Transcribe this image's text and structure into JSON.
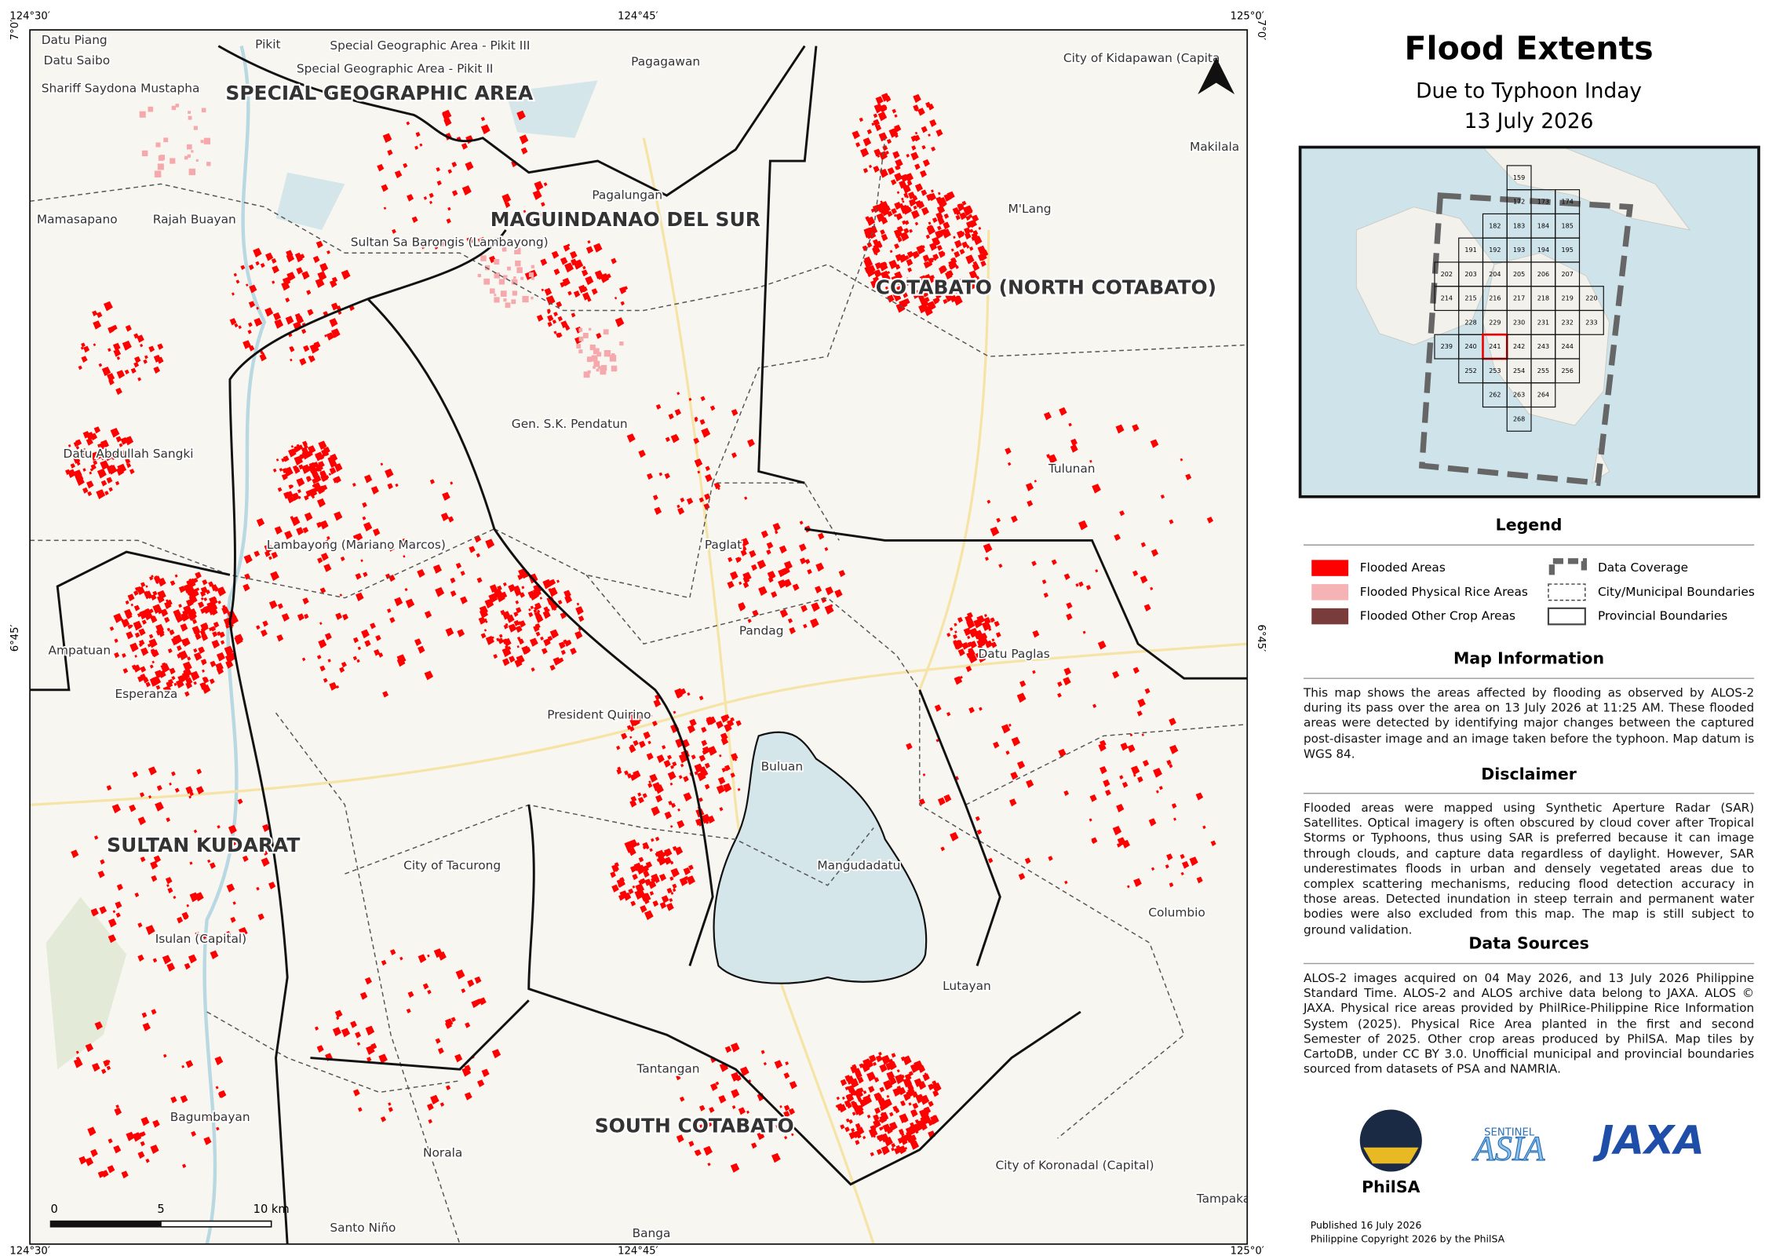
{
  "header": {
    "title": "Flood Extents",
    "subtitle": "Due to Typhoon Inday",
    "date": "13 July 2026"
  },
  "map": {
    "coordinates": {
      "top": [
        "124°30′",
        "124°45′",
        "125°0′"
      ],
      "bottom": [
        "124°30′",
        "124°45′",
        "125°0′"
      ],
      "left": [
        "7°0′",
        "6°45′"
      ],
      "right": [
        "7°0′",
        "6°45′"
      ]
    },
    "provinces": [
      "SPECIAL GEOGRAPHIC AREA",
      "MAGUINDANAO DEL SUR",
      "COTABATO (NORTH COTABATO)",
      "SULTAN KUDARAT",
      "SOUTH COTABATO"
    ],
    "places": [
      "Datu Piang",
      "Datu Saibo",
      "Pikit",
      "Special Geographic Area - Pikit III",
      "Special Geographic Area - Pikit II",
      "Shariff Saydona Mustapha",
      "Pagagawan",
      "City of Kidapawan (Capita",
      "Makilala",
      "Mamasapano",
      "Rajah Buayan",
      "Pagalungan",
      "Sultan Sa Barongis (Lambayong)",
      "M'Lang",
      "Gen. S.K. Pendatun",
      "Datu Abdullah Sangki",
      "Tulunan",
      "Lambayong (Mariano Marcos)",
      "Paglat",
      "Pandag",
      "Datu Paglas",
      "Ampatuan",
      "Esperanza",
      "President Quirino",
      "Buluan",
      "City of Tacurong",
      "Mangudadatu",
      "Columbio",
      "Isulan (Capital)",
      "Lutayan",
      "Tantangan",
      "Bagumbayan",
      "Norala",
      "City of Koronadal (Capital)",
      "Tampakan",
      "Santo Niño",
      "Banga"
    ],
    "scale_bar": [
      "0",
      "5",
      "10 km"
    ]
  },
  "inset": {
    "grid": [
      [
        "159"
      ],
      [
        "172",
        "173",
        "174"
      ],
      [
        "182",
        "183",
        "184",
        "185"
      ],
      [
        "191",
        "192",
        "193",
        "194",
        "195"
      ],
      [
        "202",
        "203",
        "204",
        "205",
        "206",
        "207"
      ],
      [
        "214",
        "215",
        "216",
        "217",
        "218",
        "219",
        "220"
      ],
      [
        "228",
        "229",
        "230",
        "231",
        "232",
        "233"
      ],
      [
        "239",
        "240",
        "241",
        "242",
        "243",
        "244"
      ],
      [
        "252",
        "253",
        "254",
        "255",
        "256"
      ],
      [
        "262",
        "263",
        "264"
      ],
      [
        "268"
      ]
    ]
  },
  "legend": {
    "title": "Legend",
    "items": [
      "Flooded Areas",
      "Flooded Physical Rice Areas",
      "Flooded Other Crop Areas",
      "Data Coverage",
      "City/Municipal Boundaries",
      "Provincial Boundaries"
    ]
  },
  "map_information": {
    "title": "Map Information",
    "text": "This map shows the areas affected by flooding as observed by ALOS-2 during its pass over the area on 13 July 2026 at 11:25 AM. These flooded areas were detected by identifying major changes between the captured post-disaster image and an image taken before the typhoon. Map datum is WGS 84."
  },
  "disclaimer": {
    "title": "Disclaimer",
    "text": "Flooded areas were mapped using Synthetic Aperture Radar (SAR) Satellites. Optical imagery is often obscured by cloud cover after Tropical Storms or Typhoons, thus using SAR is preferred because it can image through clouds, and capture data regardless of daylight. However, SAR underestimates floods in urban and densely vegetated areas due to complex scattering mechanisms, reducing flood detection accuracy in those areas. Detected inundation in steep terrain and permanent water bodies were also excluded from this map. The map is still subject to ground validation."
  },
  "data_sources": {
    "title": "Data Sources",
    "text": "ALOS-2 images acquired on 04 May 2026, and 13 July 2026 Philippine Standard Time. ALOS-2 and ALOS archive data belong to JAXA. ALOS © JAXA. Physical rice areas provided by PhilRice-Philippine Rice Information System (2025). Physical Rice Area planted in the first and second Semester of 2025. Other crop areas produced by PhilSA. Map tiles by CartoDB, under CC BY 3.0. Unofficial municipal and provincial boundaries sourced from datasets of PSA and NAMRIA."
  },
  "logos": {
    "philsa": "PhilSA",
    "sentinel": "SENTINEL",
    "asia": "ASIA",
    "jaxa": "JAXA"
  },
  "footer": {
    "published": "Published 16 July 2026",
    "copyright": "Philippine Copyright 2026 by the PhilSA"
  }
}
